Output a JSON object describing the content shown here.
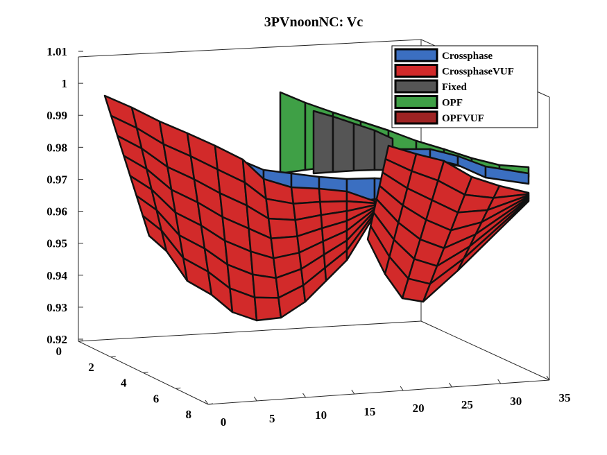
{
  "chart_data": {
    "type": "surface",
    "title": "3PVnoonNC: Vc",
    "xlabel": "",
    "ylabel": "",
    "zlabel": "",
    "xlim": [
      0,
      35
    ],
    "ylim": [
      0,
      8
    ],
    "zlim": [
      0.92,
      1.01
    ],
    "x_ticks": [
      "0",
      "5",
      "10",
      "15",
      "20",
      "25",
      "30",
      "35"
    ],
    "y_ticks": [
      "0",
      "2",
      "4",
      "6",
      "8"
    ],
    "z_ticks": [
      "0.92",
      "0.93",
      "0.94",
      "0.95",
      "0.96",
      "0.97",
      "0.98",
      "0.99",
      "1",
      "1.01"
    ],
    "legend": {
      "placement": "top-right"
    },
    "series": [
      {
        "name": "Crossphase",
        "color": "#3b6fc1"
      },
      {
        "name": "CrossphaseVUF",
        "color": "#d22a2a"
      },
      {
        "name": "Fixed",
        "color": "#555555"
      },
      {
        "name": "OPF",
        "color": "#3fa046"
      },
      {
        "name": "OPFVUF",
        "color": "#9e2323"
      }
    ]
  }
}
